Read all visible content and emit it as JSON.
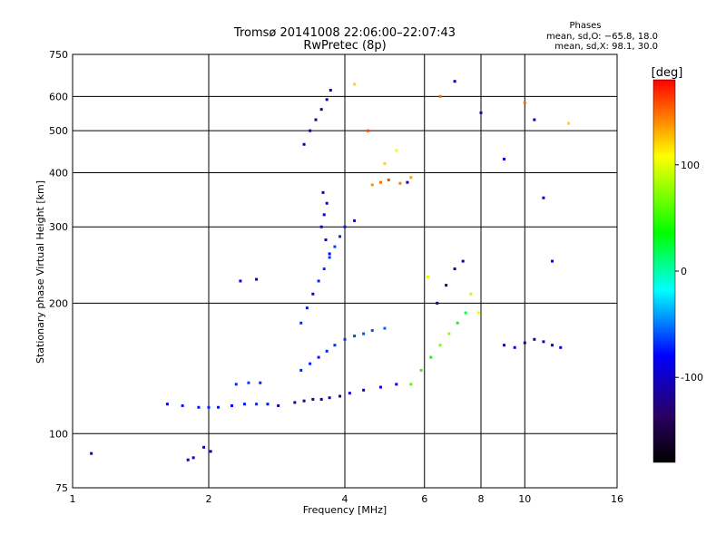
{
  "chart_data": {
    "type": "scatter",
    "title": "Tromsø 20141008 22:06:00–22:07:43",
    "subtitle": "RwPretec (8p)",
    "xlabel": "Frequency [MHz]",
    "ylabel": "Stationary phase Virtual Height [km]",
    "x_scale": "log2",
    "y_scale": "log",
    "xlim": [
      1,
      16
    ],
    "ylim": [
      75,
      750
    ],
    "x_ticks": [
      1,
      2,
      4,
      6,
      8,
      10,
      16
    ],
    "y_ticks": [
      75,
      100,
      200,
      300,
      400,
      500,
      600,
      750
    ],
    "grid": true,
    "legend": {
      "title": "Phases",
      "line1": "mean, sd,O: −65.8, 18.0",
      "line2": "mean, sd,X:  98.1, 30.0"
    },
    "colorbar": {
      "label": "[deg]",
      "range": [
        -180,
        180
      ],
      "ticks": [
        100,
        0,
        -100
      ],
      "colors": [
        "#000000",
        "#2a0060",
        "#0000ff",
        "#00ffff",
        "#00ff00",
        "#ffff00",
        "#ff0000"
      ]
    },
    "series": [
      {
        "x": [
          1.1,
          1.8,
          1.85,
          1.95,
          2.02
        ],
        "y": [
          90,
          87,
          88,
          93,
          91
        ],
        "phase": [
          -100,
          -110,
          -95,
          -90,
          -100
        ]
      },
      {
        "x": [
          1.62,
          1.75,
          1.9,
          2.0,
          2.1,
          2.25,
          2.4,
          2.55,
          2.7,
          2.85
        ],
        "y": [
          117,
          116,
          115,
          115,
          115,
          116,
          117,
          117,
          117,
          116
        ],
        "phase": [
          -80,
          -75,
          -75,
          -70,
          -75,
          -80,
          -75,
          -70,
          -75,
          -80
        ]
      },
      {
        "x": [
          2.3,
          2.45,
          2.6,
          2.35,
          2.55
        ],
        "y": [
          130,
          131,
          131,
          225,
          227
        ],
        "phase": [
          -70,
          -65,
          -70,
          -85,
          -90
        ]
      },
      {
        "x": [
          3.1,
          3.25,
          3.4,
          3.55,
          3.7,
          3.9,
          4.1,
          4.4,
          4.8,
          5.2
        ],
        "y": [
          118,
          119,
          120,
          120,
          121,
          122,
          124,
          126,
          128,
          130
        ],
        "phase": [
          -125,
          -120,
          -115,
          -110,
          -105,
          -100,
          -100,
          -95,
          -90,
          -85
        ]
      },
      {
        "x": [
          3.2,
          3.35,
          3.5,
          3.65,
          3.8,
          4.0,
          4.2,
          4.4,
          4.6,
          4.9
        ],
        "y": [
          140,
          145,
          150,
          155,
          160,
          165,
          168,
          170,
          173,
          175
        ],
        "phase": [
          -70,
          -72,
          -74,
          -70,
          -68,
          -65,
          -63,
          -60,
          -58,
          -55
        ]
      },
      {
        "x": [
          3.2,
          3.3,
          3.4,
          3.5,
          3.6,
          3.7,
          3.8,
          3.9,
          4.0,
          4.2
        ],
        "y": [
          180,
          195,
          210,
          225,
          240,
          255,
          270,
          285,
          300,
          310
        ],
        "phase": [
          -70,
          -75,
          -80,
          -72,
          -68,
          -66,
          -64,
          -70,
          -75,
          -80
        ]
      },
      {
        "x": [
          3.55,
          3.6,
          3.65,
          3.58,
          3.63,
          3.7
        ],
        "y": [
          300,
          320,
          340,
          360,
          280,
          260
        ],
        "phase": [
          -80,
          -85,
          -90,
          -95,
          -85,
          -80
        ]
      },
      {
        "x": [
          3.25,
          3.35,
          3.45,
          3.55,
          3.65,
          3.72
        ],
        "y": [
          465,
          500,
          530,
          560,
          590,
          620
        ],
        "phase": [
          -110,
          -112,
          -115,
          -118,
          -120,
          -122
        ]
      },
      {
        "x": [
          4.6,
          4.8,
          5.0,
          5.3,
          5.6,
          4.9,
          5.2
        ],
        "y": [
          375,
          380,
          385,
          378,
          390,
          420,
          450
        ],
        "phase": [
          140,
          150,
          160,
          145,
          135,
          120,
          110
        ]
      },
      {
        "x": [
          5.6,
          5.9,
          6.2,
          6.5,
          6.8,
          7.1,
          7.4
        ],
        "y": [
          130,
          140,
          150,
          160,
          170,
          180,
          190
        ],
        "phase": [
          60,
          50,
          40,
          70,
          80,
          30,
          20
        ]
      },
      {
        "x": [
          6.4,
          6.7,
          7.0,
          7.3,
          7.6,
          7.9
        ],
        "y": [
          200,
          220,
          240,
          250,
          210,
          190
        ],
        "phase": [
          -130,
          -140,
          -120,
          -110,
          90,
          100
        ]
      },
      {
        "x": [
          9.0,
          9.5,
          10.0,
          10.5,
          11.0,
          11.5,
          12.0
        ],
        "y": [
          160,
          158,
          162,
          165,
          163,
          160,
          158
        ],
        "phase": [
          -100,
          -95,
          -105,
          -110,
          -100,
          -90,
          -95
        ]
      },
      {
        "x": [
          10.0,
          10.5,
          11.0,
          11.5,
          12.5
        ],
        "y": [
          580,
          530,
          350,
          250,
          520
        ],
        "phase": [
          150,
          -100,
          -95,
          -80,
          120
        ]
      },
      {
        "x": [
          4.2,
          4.5,
          5.5,
          6.1,
          6.5,
          7.0,
          8.0,
          9.0
        ],
        "y": [
          640,
          500,
          380,
          230,
          600,
          650,
          550,
          430
        ],
        "phase": [
          120,
          160,
          -110,
          100,
          150,
          -110,
          -100,
          -95
        ]
      }
    ]
  }
}
